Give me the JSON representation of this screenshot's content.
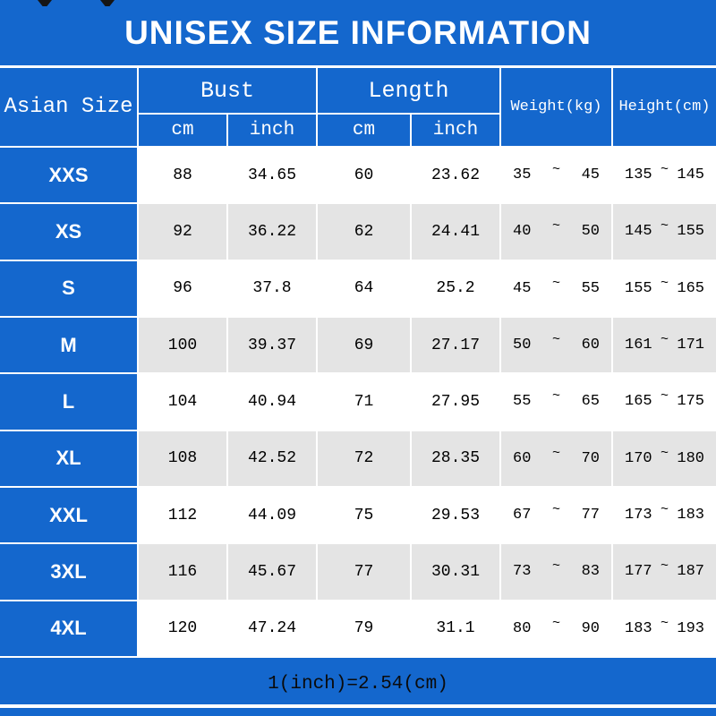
{
  "header": {
    "col_size": "Asian Size",
    "bust": "Bust",
    "length": "Length",
    "cm": "cm",
    "inch": "inch",
    "weight": "Weight(kg)",
    "height": "Height(cm)",
    "tilde": "~"
  },
  "colors": {
    "accent_blue": "#1467cd",
    "alt_row_gray": "#e4e4e4",
    "header_text": "#ffffff",
    "data_text": "#000000"
  },
  "chart_data": {
    "type": "table",
    "title": "UNISEX SIZE INFORMATION",
    "note": "1(inch)=2.54(cm)",
    "columns": [
      "Asian Size",
      "Bust cm",
      "Bust inch",
      "Length cm",
      "Length inch",
      "Weight(kg)",
      "Height(cm)"
    ],
    "rows": [
      {
        "size": "XXS",
        "bust_cm": "88",
        "bust_inch": "34.65",
        "length_cm": "60",
        "length_inch": "23.62",
        "weight_min": "35",
        "weight_max": "45",
        "height_min": "135",
        "height_max": "145"
      },
      {
        "size": "XS",
        "bust_cm": "92",
        "bust_inch": "36.22",
        "length_cm": "62",
        "length_inch": "24.41",
        "weight_min": "40",
        "weight_max": "50",
        "height_min": "145",
        "height_max": "155"
      },
      {
        "size": "S",
        "bust_cm": "96",
        "bust_inch": "37.8",
        "length_cm": "64",
        "length_inch": "25.2",
        "weight_min": "45",
        "weight_max": "55",
        "height_min": "155",
        "height_max": "165"
      },
      {
        "size": "M",
        "bust_cm": "100",
        "bust_inch": "39.37",
        "length_cm": "69",
        "length_inch": "27.17",
        "weight_min": "50",
        "weight_max": "60",
        "height_min": "161",
        "height_max": "171"
      },
      {
        "size": "L",
        "bust_cm": "104",
        "bust_inch": "40.94",
        "length_cm": "71",
        "length_inch": "27.95",
        "weight_min": "55",
        "weight_max": "65",
        "height_min": "165",
        "height_max": "175"
      },
      {
        "size": "XL",
        "bust_cm": "108",
        "bust_inch": "42.52",
        "length_cm": "72",
        "length_inch": "28.35",
        "weight_min": "60",
        "weight_max": "70",
        "height_min": "170",
        "height_max": "180"
      },
      {
        "size": "XXL",
        "bust_cm": "112",
        "bust_inch": "44.09",
        "length_cm": "75",
        "length_inch": "29.53",
        "weight_min": "67",
        "weight_max": "77",
        "height_min": "173",
        "height_max": "183"
      },
      {
        "size": "3XL",
        "bust_cm": "116",
        "bust_inch": "45.67",
        "length_cm": "77",
        "length_inch": "30.31",
        "weight_min": "73",
        "weight_max": "83",
        "height_min": "177",
        "height_max": "187"
      },
      {
        "size": "4XL",
        "bust_cm": "120",
        "bust_inch": "47.24",
        "length_cm": "79",
        "length_inch": "31.1",
        "weight_min": "80",
        "weight_max": "90",
        "height_min": "183",
        "height_max": "193"
      }
    ]
  }
}
